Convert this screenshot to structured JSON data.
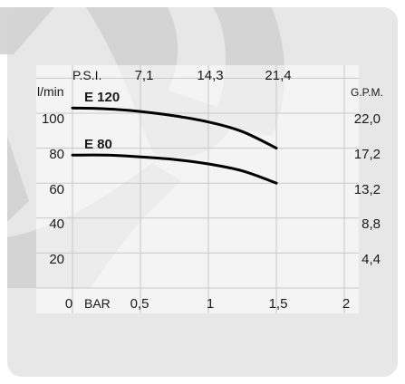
{
  "chart_data": {
    "type": "line",
    "x_axis": {
      "unit_label": "BAR",
      "ticks": [
        "0",
        "0,5",
        "1",
        "1,5",
        "2"
      ],
      "range": [
        0,
        2
      ]
    },
    "top_axis": {
      "unit_label": "P.S.I.",
      "ticks": [
        "7,1",
        "14,3",
        "21,4"
      ]
    },
    "y_axis": {
      "unit_label": "l/min",
      "ticks": [
        "20",
        "40",
        "60",
        "80",
        "100"
      ],
      "range": [
        0,
        120
      ]
    },
    "right_axis": {
      "unit_label": "G.P.M.",
      "ticks": [
        "4,4",
        "8,8",
        "13,2",
        "17,2",
        "22,0"
      ]
    },
    "series": [
      {
        "name": "E 120",
        "x": [
          0,
          0.25,
          0.5,
          0.75,
          1.0,
          1.25,
          1.5
        ],
        "y": [
          103,
          102.5,
          101,
          98.5,
          95,
          89.5,
          80
        ]
      },
      {
        "name": "E 80",
        "x": [
          0,
          0.25,
          0.5,
          0.75,
          1.0,
          1.25,
          1.5
        ],
        "y": [
          76,
          76,
          75,
          73.5,
          71,
          67,
          60
        ]
      }
    ],
    "grid": true,
    "colors": {
      "background": "#e7e7e7",
      "plot_area": "#ffffff",
      "grid": "#c8c8c8",
      "line": "#000000",
      "watermark": "#d6d6d6"
    }
  }
}
